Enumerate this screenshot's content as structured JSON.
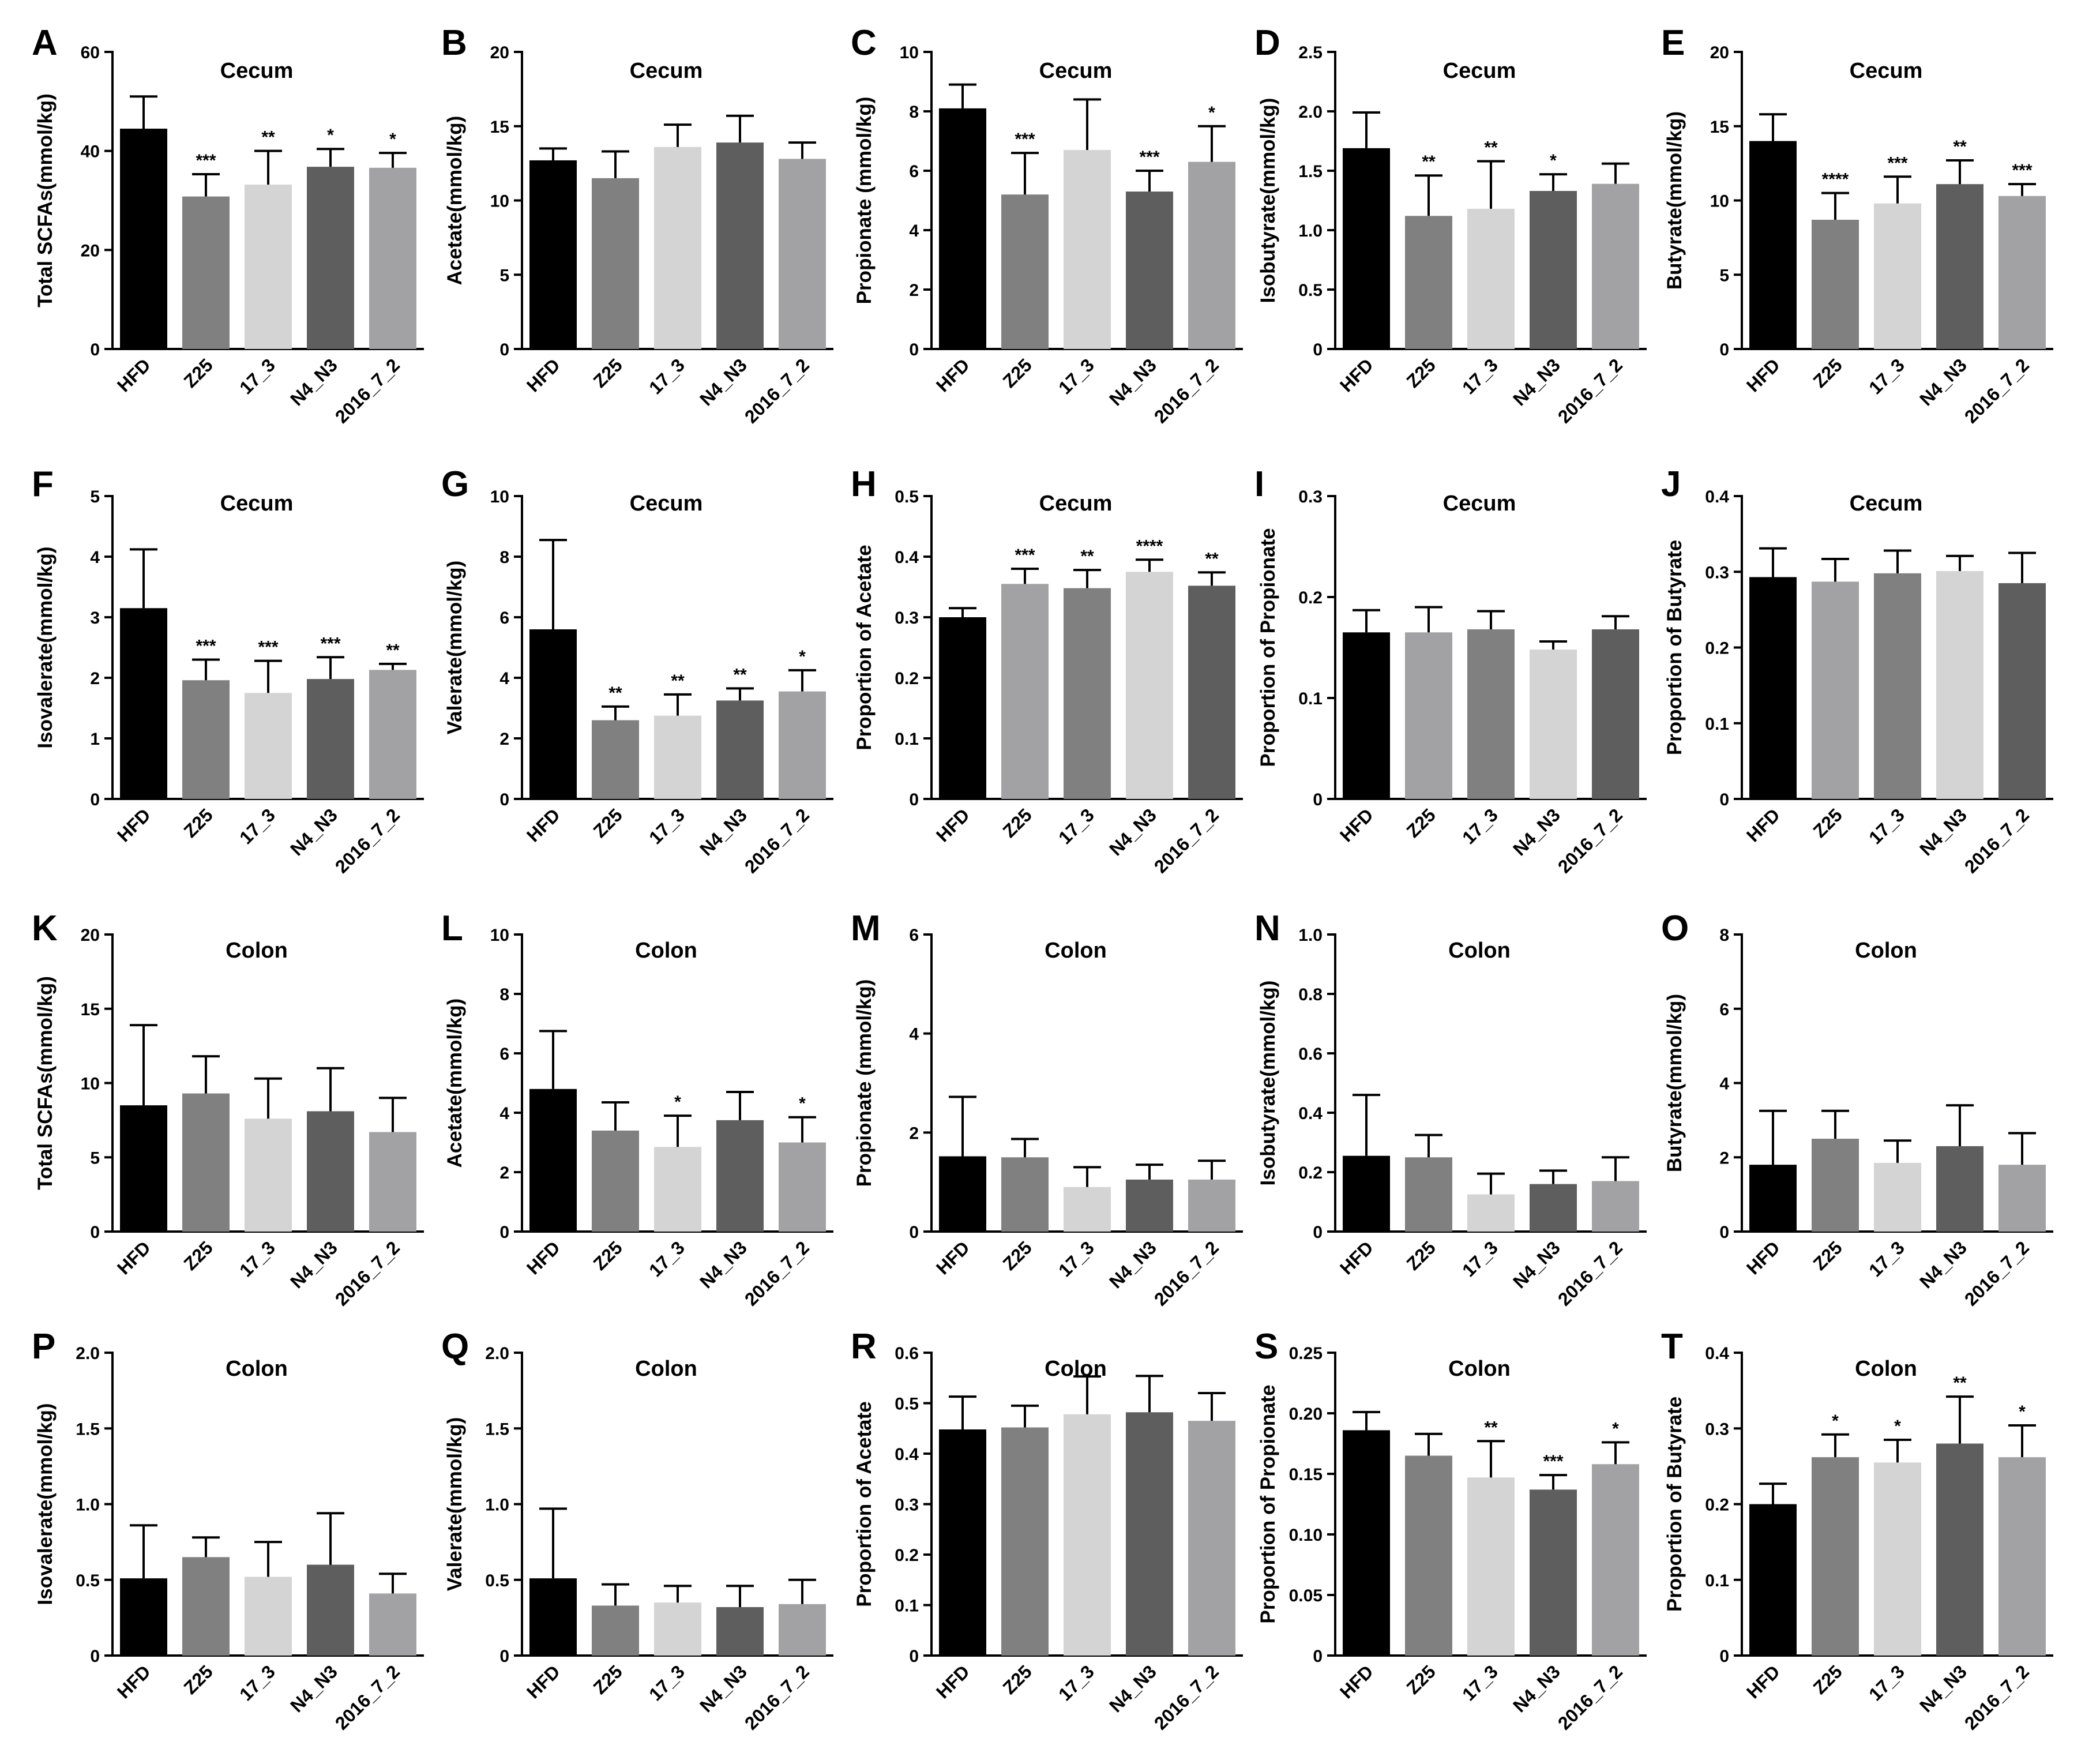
{
  "figure": {
    "categories": [
      "HFD",
      "Z25",
      "17_3",
      "N4_N3",
      "2016_7_2"
    ],
    "bar_colors": [
      "#000000",
      "#808080",
      "#d4d4d4",
      "#5e5e5e",
      "#a2a2a4"
    ]
  },
  "chart_data": [
    {
      "panel": "A",
      "type": "bar",
      "title": "Cecum",
      "ylabel": "Total SCFAs(mmol/kg)",
      "ylim": [
        0,
        60
      ],
      "yticks": [
        "0",
        "20",
        "40",
        "60"
      ],
      "values": [
        44.5,
        30.8,
        33.2,
        36.8,
        36.6
      ],
      "errors": [
        6.5,
        4.5,
        6.8,
        3.6,
        3.0
      ],
      "sig": [
        "",
        "***",
        "**",
        "*",
        "*"
      ]
    },
    {
      "panel": "B",
      "type": "bar",
      "title": "Cecum",
      "ylabel": "Acetate(mmol/kg)",
      "ylim": [
        0,
        20
      ],
      "yticks": [
        "0",
        "5",
        "10",
        "15",
        "20"
      ],
      "values": [
        12.7,
        11.5,
        13.6,
        13.9,
        12.8
      ],
      "errors": [
        0.8,
        1.8,
        1.5,
        1.8,
        1.1
      ],
      "sig": [
        "",
        "",
        "",
        "",
        ""
      ]
    },
    {
      "panel": "C",
      "type": "bar",
      "title": "Cecum",
      "ylabel": "Propionate (mmol/kg)",
      "ylim": [
        0,
        10
      ],
      "yticks": [
        "0",
        "2",
        "4",
        "6",
        "8",
        "10"
      ],
      "values": [
        8.1,
        5.2,
        6.7,
        5.3,
        6.3
      ],
      "errors": [
        0.8,
        1.4,
        1.7,
        0.7,
        1.2
      ],
      "sig": [
        "",
        "***",
        "",
        "***",
        "*"
      ]
    },
    {
      "panel": "D",
      "type": "bar",
      "title": "Cecum",
      "ylabel": "Isobutyrate(mmol/kg)",
      "ylim": [
        0,
        2.5
      ],
      "yticks": [
        "0",
        "0.5",
        "1.0",
        "1.5",
        "2.0",
        "2.5"
      ],
      "values": [
        1.69,
        1.12,
        1.18,
        1.33,
        1.39
      ],
      "errors": [
        0.3,
        0.34,
        0.4,
        0.14,
        0.17
      ],
      "sig": [
        "",
        "**",
        "**",
        "*",
        ""
      ]
    },
    {
      "panel": "E",
      "type": "bar",
      "title": "Cecum",
      "ylabel": "Butyrate(mmol/kg)",
      "ylim": [
        0,
        20
      ],
      "yticks": [
        "0",
        "5",
        "10",
        "15",
        "20"
      ],
      "values": [
        14.0,
        8.7,
        9.8,
        11.1,
        10.3
      ],
      "errors": [
        1.8,
        1.8,
        1.8,
        1.6,
        0.8
      ],
      "sig": [
        "",
        "****",
        "***",
        "**",
        "***"
      ]
    },
    {
      "panel": "F",
      "type": "bar",
      "title": "Cecum",
      "ylabel": "Isovalerate(mmol/kg)",
      "ylim": [
        0,
        5
      ],
      "yticks": [
        "0",
        "1",
        "2",
        "3",
        "4",
        "5"
      ],
      "values": [
        3.15,
        1.96,
        1.75,
        1.98,
        2.13
      ],
      "errors": [
        0.97,
        0.34,
        0.53,
        0.36,
        0.1
      ],
      "sig": [
        "",
        "***",
        "***",
        "***",
        "**"
      ]
    },
    {
      "panel": "G",
      "type": "bar",
      "title": "Cecum",
      "ylabel": "Valerate(mmol/kg)",
      "ylim": [
        0,
        10
      ],
      "yticks": [
        "0",
        "2",
        "4",
        "6",
        "8",
        "10"
      ],
      "values": [
        5.6,
        2.6,
        2.75,
        3.25,
        3.55
      ],
      "errors": [
        2.95,
        0.45,
        0.7,
        0.4,
        0.7
      ],
      "sig": [
        "",
        "**",
        "**",
        "**",
        "*"
      ]
    },
    {
      "panel": "H",
      "type": "bar",
      "title": "Cecum",
      "ylabel": "Proportion of Acetate",
      "ylim": [
        0,
        0.5
      ],
      "yticks": [
        "0",
        "0.1",
        "0.2",
        "0.3",
        "0.4",
        "0.5"
      ],
      "values": [
        0.3,
        0.355,
        0.348,
        0.375,
        0.352
      ],
      "errors": [
        0.015,
        0.025,
        0.03,
        0.02,
        0.022
      ],
      "sig": [
        "",
        "***",
        "**",
        "****",
        "**"
      ],
      "colors": [
        "#000000",
        "#a2a2a4",
        "#808080",
        "#d4d4d4",
        "#5e5e5e"
      ]
    },
    {
      "panel": "I",
      "type": "bar",
      "title": "Cecum",
      "ylabel": "Proportion of Propionate",
      "ylim": [
        0,
        0.3
      ],
      "yticks": [
        "0",
        "0.1",
        "0.2",
        "0.3"
      ],
      "values": [
        0.165,
        0.165,
        0.168,
        0.148,
        0.168
      ],
      "errors": [
        0.022,
        0.025,
        0.018,
        0.008,
        0.013
      ],
      "sig": [
        "",
        "",
        "",
        "",
        ""
      ],
      "colors": [
        "#000000",
        "#a2a2a4",
        "#808080",
        "#d4d4d4",
        "#5e5e5e"
      ]
    },
    {
      "panel": "J",
      "type": "bar",
      "title": "Cecum",
      "ylabel": "Proportion of  Butyrate",
      "ylim": [
        0,
        0.4
      ],
      "yticks": [
        "0",
        "0.1",
        "0.2",
        "0.3",
        "0.4"
      ],
      "values": [
        0.293,
        0.287,
        0.298,
        0.301,
        0.285
      ],
      "errors": [
        0.038,
        0.03,
        0.03,
        0.02,
        0.04
      ],
      "sig": [
        "",
        "",
        "",
        "",
        ""
      ],
      "colors": [
        "#000000",
        "#a2a2a4",
        "#808080",
        "#d4d4d4",
        "#5e5e5e"
      ]
    },
    {
      "panel": "K",
      "type": "bar",
      "title": "Colon",
      "ylabel": "Total SCFAs(mmol/kg)",
      "ylim": [
        0,
        20
      ],
      "yticks": [
        "0",
        "5",
        "10",
        "15",
        "20"
      ],
      "values": [
        8.5,
        9.3,
        7.6,
        8.1,
        6.7
      ],
      "errors": [
        5.4,
        2.5,
        2.7,
        2.9,
        2.3
      ],
      "sig": [
        "",
        "",
        "",
        "",
        ""
      ]
    },
    {
      "panel": "L",
      "type": "bar",
      "title": "Colon",
      "ylabel": "Acetate(mmol/kg)",
      "ylim": [
        0,
        10
      ],
      "yticks": [
        "0",
        "2",
        "4",
        "6",
        "8",
        "10"
      ],
      "values": [
        4.8,
        3.4,
        2.85,
        3.75,
        3.0
      ],
      "errors": [
        1.95,
        0.95,
        1.05,
        0.95,
        0.85
      ],
      "sig": [
        "",
        "",
        "*",
        "",
        "*"
      ]
    },
    {
      "panel": "M",
      "type": "bar",
      "title": "Colon",
      "ylabel": "Propionate (mmol/kg)",
      "ylim": [
        0,
        6
      ],
      "yticks": [
        "0",
        "2",
        "4",
        "6"
      ],
      "values": [
        1.52,
        1.5,
        0.9,
        1.05,
        1.05
      ],
      "errors": [
        1.2,
        0.37,
        0.4,
        0.3,
        0.38
      ],
      "sig": [
        "",
        "",
        "",
        "",
        ""
      ]
    },
    {
      "panel": "N",
      "type": "bar",
      "title": "Colon",
      "ylabel": "Isobutyrate(mmol/kg)",
      "ylim": [
        0,
        1.0
      ],
      "yticks": [
        "0",
        "0.2",
        "0.4",
        "0.6",
        "0.8",
        "1.0"
      ],
      "values": [
        0.255,
        0.25,
        0.125,
        0.16,
        0.17
      ],
      "errors": [
        0.205,
        0.075,
        0.07,
        0.045,
        0.08
      ],
      "sig": [
        "",
        "",
        "",
        "",
        ""
      ]
    },
    {
      "panel": "O",
      "type": "bar",
      "title": "Colon",
      "ylabel": "Butyrate(mmol/kg)",
      "ylim": [
        0,
        8
      ],
      "yticks": [
        "0",
        "2",
        "4",
        "6",
        "8"
      ],
      "values": [
        1.8,
        2.5,
        1.85,
        2.3,
        1.8
      ],
      "errors": [
        1.45,
        0.75,
        0.6,
        1.1,
        0.85
      ],
      "sig": [
        "",
        "",
        "",
        "",
        ""
      ]
    },
    {
      "panel": "P",
      "type": "bar",
      "title": "Colon",
      "ylabel": "Isovalerate(mmol/kg)",
      "ylim": [
        0,
        2.0
      ],
      "yticks": [
        "0",
        "0.5",
        "1.0",
        "1.5",
        "2.0"
      ],
      "values": [
        0.51,
        0.65,
        0.52,
        0.6,
        0.41
      ],
      "errors": [
        0.35,
        0.13,
        0.23,
        0.34,
        0.13
      ],
      "sig": [
        "",
        "",
        "",
        "",
        ""
      ]
    },
    {
      "panel": "Q",
      "type": "bar",
      "title": "Colon",
      "ylabel": "Valerate(mmol/kg)",
      "ylim": [
        0,
        2.0
      ],
      "yticks": [
        "0",
        "0.5",
        "1.0",
        "1.5",
        "2.0"
      ],
      "values": [
        0.51,
        0.33,
        0.35,
        0.32,
        0.34
      ],
      "errors": [
        0.46,
        0.14,
        0.11,
        0.14,
        0.16
      ],
      "sig": [
        "",
        "",
        "",
        "",
        ""
      ]
    },
    {
      "panel": "R",
      "type": "bar",
      "title": "Colon",
      "ylabel": "Proportion of Acetate",
      "ylim": [
        0,
        0.6
      ],
      "yticks": [
        "0",
        "0.1",
        "0.2",
        "0.3",
        "0.4",
        "0.5",
        "0.6"
      ],
      "values": [
        0.448,
        0.452,
        0.478,
        0.482,
        0.465
      ],
      "errors": [
        0.065,
        0.043,
        0.075,
        0.072,
        0.055
      ],
      "sig": [
        "",
        "",
        "",
        "",
        ""
      ]
    },
    {
      "panel": "S",
      "type": "bar",
      "title": "Colon",
      "ylabel": "Proportion of Propionate",
      "ylim": [
        0,
        0.25
      ],
      "yticks": [
        "0",
        "0.05",
        "0.10",
        "0.15",
        "0.20",
        "0.25"
      ],
      "values": [
        0.186,
        0.165,
        0.147,
        0.137,
        0.158
      ],
      "errors": [
        0.015,
        0.018,
        0.03,
        0.012,
        0.018
      ],
      "sig": [
        "",
        "",
        "**",
        "***",
        "*"
      ]
    },
    {
      "panel": "T",
      "type": "bar",
      "title": "Colon",
      "ylabel": "Proportion of  Butyrate",
      "ylim": [
        0,
        0.4
      ],
      "yticks": [
        "0",
        "0.1",
        "0.2",
        "0.3",
        "0.4"
      ],
      "values": [
        0.2,
        0.262,
        0.255,
        0.28,
        0.262
      ],
      "errors": [
        0.027,
        0.03,
        0.03,
        0.062,
        0.042
      ],
      "sig": [
        "",
        "*",
        "*",
        "**",
        "*"
      ]
    }
  ]
}
